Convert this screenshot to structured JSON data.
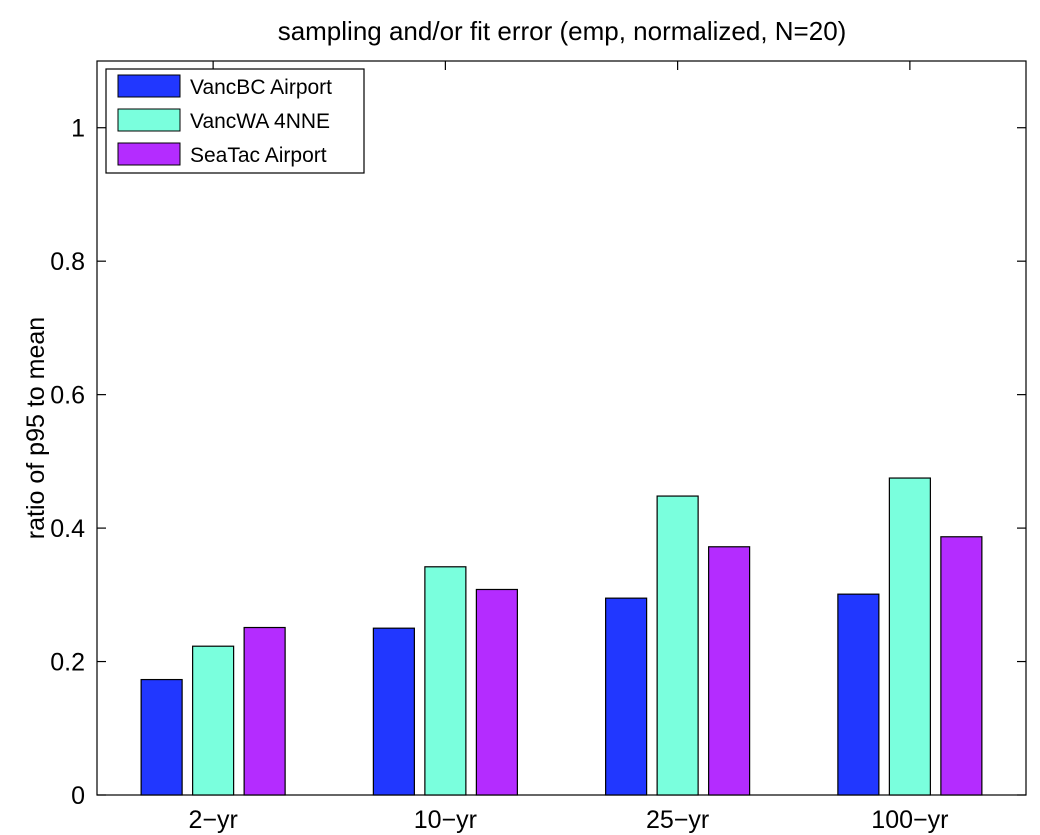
{
  "chart_data": {
    "type": "bar",
    "title": "sampling and/or fit error (emp, normalized, N=20)",
    "xlabel": "",
    "ylabel": "ratio of p95 to mean",
    "categories": [
      "2−yr",
      "10−yr",
      "25−yr",
      "100−yr"
    ],
    "ylim": [
      0,
      1.1
    ],
    "yticks": [
      0,
      0.2,
      0.4,
      0.6,
      0.8,
      1
    ],
    "ytick_labels": [
      "0",
      "0.2",
      "0.4",
      "0.6",
      "0.8",
      "1"
    ],
    "grid": false,
    "legend_position": "top-left",
    "series": [
      {
        "name": "VancBC Airport",
        "color": "#2137ff",
        "values": [
          0.173,
          0.25,
          0.295,
          0.301
        ]
      },
      {
        "name": "VancWA 4NNE",
        "color": "#7affdd",
        "values": [
          0.223,
          0.342,
          0.448,
          0.475
        ]
      },
      {
        "name": "SeaTac Airport",
        "color": "#b42cff",
        "values": [
          0.251,
          0.308,
          0.372,
          0.387
        ]
      }
    ]
  }
}
